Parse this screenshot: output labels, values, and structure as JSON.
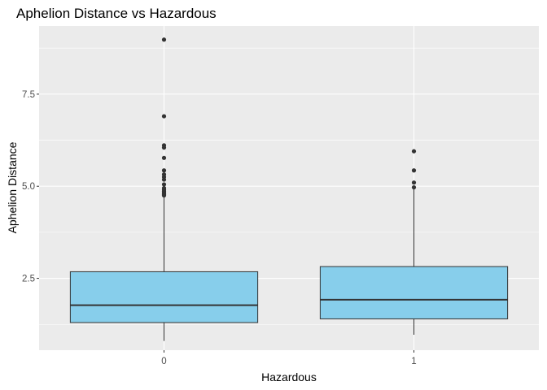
{
  "chart_data": {
    "type": "boxplot",
    "title": "Aphelion Distance vs Hazardous",
    "xlabel": "Hazardous",
    "ylabel": "Aphelion Distance",
    "categories": [
      "0",
      "1"
    ],
    "ylim": [
      0.55,
      9.35
    ],
    "yticks": [
      2.5,
      5.0,
      7.5
    ],
    "ytick_labels": [
      "2.5",
      "5.0",
      "7.5"
    ],
    "grid": true,
    "fill_color": "#87CEEB",
    "panel_color": "#EBEBEB",
    "boxes": [
      {
        "category": "0",
        "whisker_low": 0.8,
        "q1": 1.3,
        "median": 1.77,
        "q3": 2.68,
        "whisker_high": 4.73,
        "outliers": [
          4.75,
          4.77,
          4.79,
          4.81,
          4.83,
          4.86,
          4.9,
          4.95,
          5.05,
          5.18,
          5.25,
          5.32,
          5.43,
          5.77,
          6.05,
          6.11,
          6.9,
          8.98
        ]
      },
      {
        "category": "1",
        "whisker_low": 0.97,
        "q1": 1.4,
        "median": 1.92,
        "q3": 2.82,
        "whisker_high": 4.93,
        "outliers": [
          4.97,
          5.1,
          5.43,
          5.95
        ]
      }
    ]
  }
}
